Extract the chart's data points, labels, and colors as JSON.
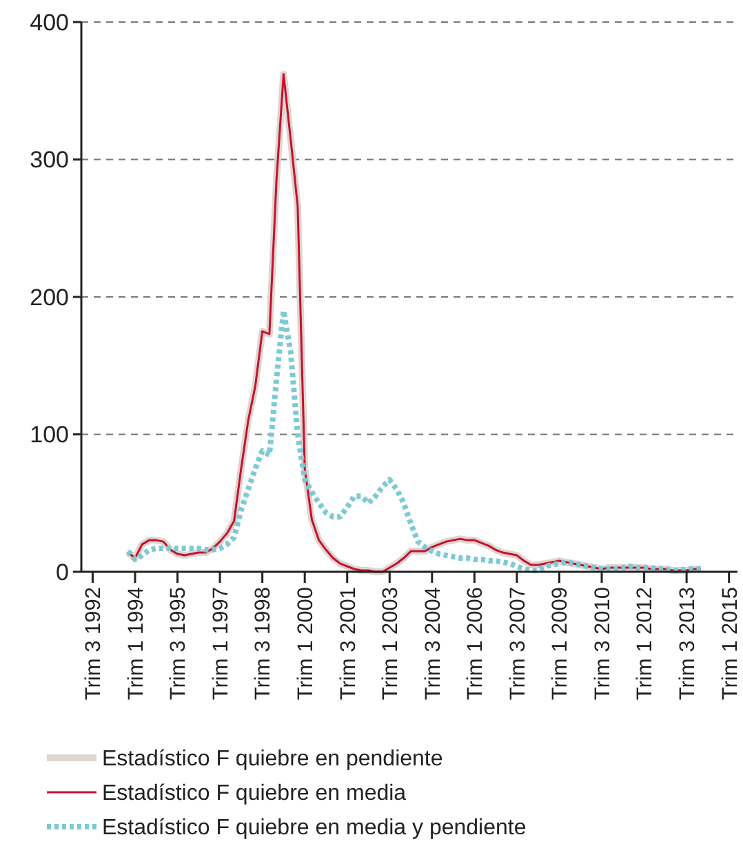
{
  "chart_data": {
    "type": "line",
    "categories": [
      "Trim 3 1992",
      null,
      null,
      null,
      null,
      null,
      "Trim 1 1994",
      null,
      null,
      null,
      null,
      null,
      "Trim 3 1995",
      null,
      null,
      null,
      null,
      null,
      "Trim 1 1997",
      null,
      null,
      null,
      null,
      null,
      "Trim 3 1998",
      null,
      null,
      null,
      null,
      null,
      "Trim 1 2000",
      null,
      null,
      null,
      null,
      null,
      "Trim 3 2001",
      null,
      null,
      null,
      null,
      null,
      "Trim 1 2003",
      null,
      null,
      null,
      null,
      null,
      "Trim 3 2004",
      null,
      null,
      null,
      null,
      null,
      "Trim 1 2006",
      null,
      null,
      null,
      null,
      null,
      "Trim 3 2007",
      null,
      null,
      null,
      null,
      null,
      "Trim 1 2009",
      null,
      null,
      null,
      null,
      null,
      "Trim 3 2010",
      null,
      null,
      null,
      null,
      null,
      "Trim 1 2012",
      null,
      null,
      null,
      null,
      null,
      "Trim 3 2013",
      null,
      null,
      null,
      null,
      null,
      "Trim 1 2015"
    ],
    "ylim": [
      0,
      400
    ],
    "yticks": [
      0,
      100,
      200,
      300,
      400
    ],
    "grid": "y",
    "legend": "bottom",
    "series": [
      {
        "name": "Estadístico F quiebre en pendiente",
        "color": "#ddd5cf",
        "line_style": "solid",
        "values": [
          null,
          null,
          null,
          null,
          null,
          14,
          10,
          20,
          23,
          23,
          22,
          16,
          13,
          12,
          13,
          14,
          14,
          17,
          22,
          28,
          37,
          75,
          110,
          135,
          175,
          173,
          285,
          362,
          315,
          266,
          75,
          38,
          23,
          16,
          10,
          6,
          4,
          2,
          1,
          1,
          0,
          0,
          3,
          6,
          10,
          15,
          15,
          15,
          18,
          20,
          22,
          23,
          24,
          23,
          23,
          21,
          19,
          16,
          14,
          13,
          12,
          8,
          5,
          5,
          6,
          7,
          8,
          7,
          6,
          5,
          4,
          3,
          2,
          3,
          3,
          3,
          3,
          3,
          3,
          2,
          2,
          2,
          1,
          1,
          1,
          2,
          2,
          null,
          null,
          null,
          null
        ]
      },
      {
        "name": "Estadístico F quiebre en media",
        "color": "#c8102e",
        "line_style": "solid",
        "values": [
          null,
          null,
          null,
          null,
          null,
          14,
          10,
          20,
          23,
          23,
          22,
          16,
          13,
          12,
          13,
          14,
          14,
          17,
          22,
          28,
          37,
          75,
          110,
          135,
          175,
          173,
          285,
          362,
          315,
          266,
          75,
          38,
          23,
          16,
          10,
          6,
          4,
          2,
          1,
          1,
          0,
          0,
          3,
          6,
          10,
          15,
          15,
          15,
          18,
          20,
          22,
          23,
          24,
          23,
          23,
          21,
          19,
          16,
          14,
          13,
          12,
          8,
          5,
          5,
          6,
          7,
          8,
          7,
          6,
          5,
          4,
          3,
          2,
          3,
          3,
          3,
          3,
          3,
          3,
          2,
          2,
          2,
          1,
          1,
          1,
          2,
          2,
          null,
          null,
          null,
          null
        ]
      },
      {
        "name": "Estadístico F quiebre en media y pendiente",
        "color": "#7ccad3",
        "line_style": "dotted",
        "values": [
          null,
          null,
          null,
          null,
          null,
          15,
          9,
          12,
          16,
          17,
          17,
          17,
          17,
          17,
          17,
          17,
          16,
          16,
          17,
          20,
          25,
          45,
          60,
          75,
          88,
          85,
          140,
          190,
          160,
          100,
          67,
          58,
          50,
          43,
          40,
          40,
          47,
          55,
          55,
          50,
          55,
          62,
          67,
          60,
          50,
          35,
          22,
          18,
          15,
          13,
          12,
          11,
          10,
          10,
          9,
          9,
          8,
          8,
          7,
          6,
          4,
          2,
          1,
          1,
          4,
          5,
          6,
          7,
          6,
          5,
          4,
          3,
          2,
          2,
          2,
          3,
          4,
          3,
          3,
          3,
          2,
          2,
          1,
          1,
          2,
          2,
          2,
          null,
          null,
          null,
          null
        ]
      }
    ]
  }
}
